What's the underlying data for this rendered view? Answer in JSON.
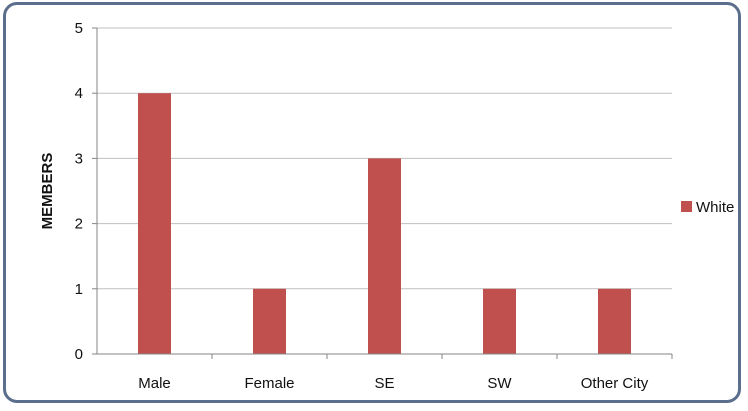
{
  "chart_data": {
    "type": "bar",
    "categories": [
      "Male",
      "Female",
      "SE",
      "SW",
      "Other City"
    ],
    "series": [
      {
        "name": "White",
        "values": [
          4,
          1,
          3,
          1,
          1
        ]
      }
    ],
    "xlabel": "",
    "ylabel": "MEMBERS",
    "ylim": [
      0,
      5
    ],
    "yticks": [
      0,
      1,
      2,
      3,
      4,
      5
    ],
    "grid": true,
    "legend": "right",
    "colors": {
      "bar": "#c0504d",
      "grid": "#bfbfbf",
      "axis": "#868686",
      "frame": "#5b6e8c"
    }
  }
}
